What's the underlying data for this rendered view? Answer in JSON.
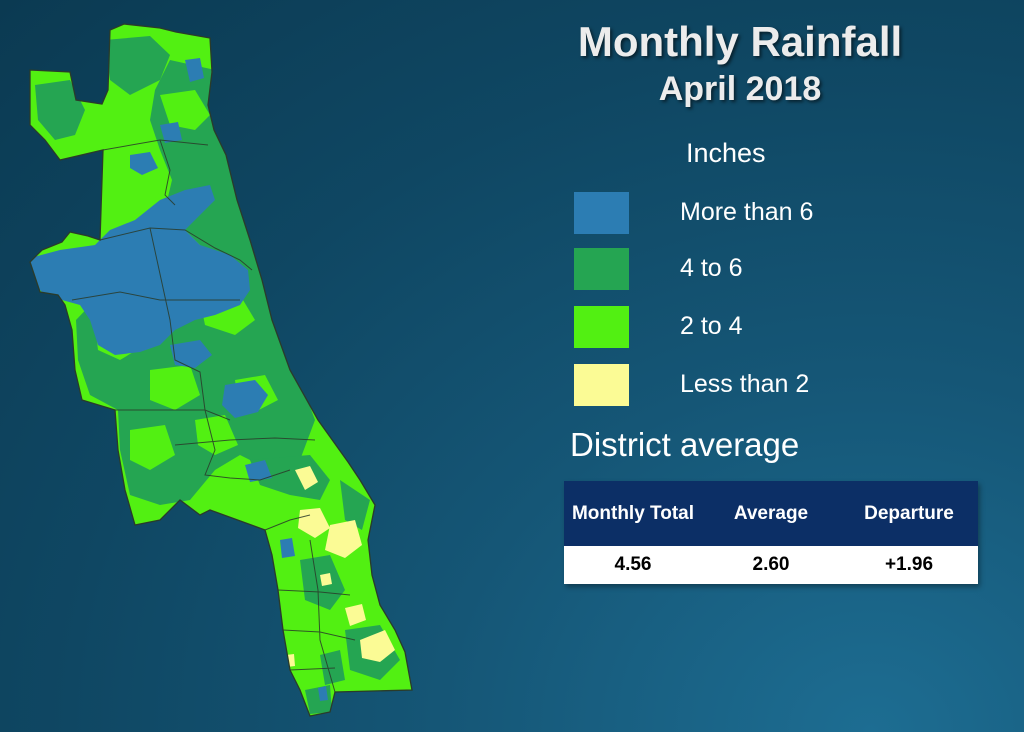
{
  "title": "Monthly Rainfall",
  "subtitle": "April 2018",
  "legend": {
    "units": "Inches",
    "items": [
      {
        "label": "More than 6",
        "color": "#2c7db3"
      },
      {
        "label": "4 to 6",
        "color": "#25a552"
      },
      {
        "label": "2 to 4",
        "color": "#52f012"
      },
      {
        "label": "Less than 2",
        "color": "#fbfb95"
      }
    ]
  },
  "district_average": {
    "heading": "District average",
    "columns": [
      "Monthly Total",
      "Average",
      "Departure"
    ],
    "values": [
      "4.56",
      "2.60",
      "+1.96"
    ]
  },
  "map": {
    "region": "district rainfall map",
    "border_color": "#2a3b2a"
  }
}
